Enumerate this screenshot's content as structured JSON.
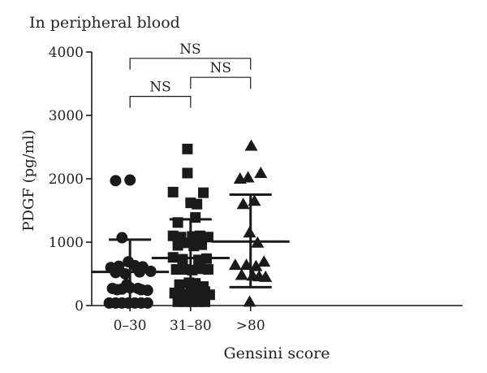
{
  "chart_data": {
    "type": "scatter",
    "subtitle": "In peripheral blood",
    "xlabel": "Gensini score",
    "ylabel": "PDGF (pg/ml)",
    "ylim": [
      0,
      4000
    ],
    "yticks": [
      "0",
      "1000",
      "2000",
      "3000",
      "4000"
    ],
    "grid": false,
    "categories": [
      "0–30",
      "31–80",
      ">80"
    ],
    "groups": [
      {
        "category": "0–30",
        "marker": "circle",
        "mean": 530,
        "sd_upper": 1040,
        "sd_lower": 40,
        "points": [
          {
            "x": 0.75,
            "y": 1970
          },
          {
            "x": 1.2,
            "y": 1980
          },
          {
            "x": 0.95,
            "y": 1070
          },
          {
            "x": 0.6,
            "y": 600
          },
          {
            "x": 0.85,
            "y": 620
          },
          {
            "x": 1.35,
            "y": 630
          },
          {
            "x": 1.6,
            "y": 610
          },
          {
            "x": 1.15,
            "y": 690
          },
          {
            "x": 0.75,
            "y": 520
          },
          {
            "x": 1.05,
            "y": 500
          },
          {
            "x": 1.5,
            "y": 530
          },
          {
            "x": 1.85,
            "y": 540
          },
          {
            "x": 0.65,
            "y": 270
          },
          {
            "x": 0.95,
            "y": 260
          },
          {
            "x": 1.2,
            "y": 280
          },
          {
            "x": 1.45,
            "y": 270
          },
          {
            "x": 1.75,
            "y": 240
          },
          {
            "x": 0.8,
            "y": 250
          },
          {
            "x": 1.1,
            "y": 330
          },
          {
            "x": 1.55,
            "y": 250
          },
          {
            "x": 0.55,
            "y": 40
          },
          {
            "x": 0.75,
            "y": 40
          },
          {
            "x": 0.95,
            "y": 40
          },
          {
            "x": 1.15,
            "y": 40
          },
          {
            "x": 1.35,
            "y": 40
          },
          {
            "x": 1.55,
            "y": 40
          },
          {
            "x": 1.75,
            "y": 40
          }
        ]
      },
      {
        "category": "31–80",
        "marker": "square",
        "mean": 750,
        "sd_upper": 1360,
        "sd_lower": 130,
        "points": [
          {
            "x": 3.0,
            "y": 2470
          },
          {
            "x": 3.0,
            "y": 2090
          },
          {
            "x": 2.55,
            "y": 1790
          },
          {
            "x": 3.5,
            "y": 1780
          },
          {
            "x": 3.1,
            "y": 1620
          },
          {
            "x": 3.3,
            "y": 1600
          },
          {
            "x": 2.7,
            "y": 1310
          },
          {
            "x": 3.25,
            "y": 1390
          },
          {
            "x": 2.55,
            "y": 1100
          },
          {
            "x": 2.8,
            "y": 1080
          },
          {
            "x": 3.15,
            "y": 1090
          },
          {
            "x": 3.4,
            "y": 1100
          },
          {
            "x": 3.65,
            "y": 1080
          },
          {
            "x": 2.7,
            "y": 950
          },
          {
            "x": 3.0,
            "y": 990
          },
          {
            "x": 3.2,
            "y": 940
          },
          {
            "x": 3.45,
            "y": 960
          },
          {
            "x": 3.3,
            "y": 1010
          },
          {
            "x": 2.55,
            "y": 760
          },
          {
            "x": 2.85,
            "y": 730
          },
          {
            "x": 3.35,
            "y": 720
          },
          {
            "x": 3.6,
            "y": 740
          },
          {
            "x": 2.65,
            "y": 570
          },
          {
            "x": 2.9,
            "y": 570
          },
          {
            "x": 3.15,
            "y": 560
          },
          {
            "x": 3.4,
            "y": 580
          },
          {
            "x": 3.65,
            "y": 570
          },
          {
            "x": 2.75,
            "y": 330
          },
          {
            "x": 3.05,
            "y": 360
          },
          {
            "x": 3.25,
            "y": 350
          },
          {
            "x": 3.5,
            "y": 300
          },
          {
            "x": 2.6,
            "y": 200
          },
          {
            "x": 2.85,
            "y": 180
          },
          {
            "x": 3.1,
            "y": 210
          },
          {
            "x": 3.35,
            "y": 190
          },
          {
            "x": 3.55,
            "y": 220
          },
          {
            "x": 3.7,
            "y": 170
          },
          {
            "x": 2.7,
            "y": 60
          },
          {
            "x": 2.95,
            "y": 60
          },
          {
            "x": 3.15,
            "y": 60
          },
          {
            "x": 3.35,
            "y": 60
          },
          {
            "x": 3.55,
            "y": 60
          }
        ]
      },
      {
        "category": ">80",
        "marker": "triangle",
        "mean": 1010,
        "sd_upper": 1750,
        "sd_lower": 290,
        "points": [
          {
            "x": 5.0,
            "y": 2520
          },
          {
            "x": 4.65,
            "y": 2000
          },
          {
            "x": 4.9,
            "y": 2020
          },
          {
            "x": 5.3,
            "y": 2090
          },
          {
            "x": 4.75,
            "y": 1600
          },
          {
            "x": 5.1,
            "y": 1650
          },
          {
            "x": 4.95,
            "y": 1150
          },
          {
            "x": 5.2,
            "y": 990
          },
          {
            "x": 4.5,
            "y": 640
          },
          {
            "x": 4.85,
            "y": 640
          },
          {
            "x": 5.15,
            "y": 620
          },
          {
            "x": 5.4,
            "y": 690
          },
          {
            "x": 4.7,
            "y": 480
          },
          {
            "x": 5.05,
            "y": 470
          },
          {
            "x": 5.25,
            "y": 460
          },
          {
            "x": 5.45,
            "y": 450
          },
          {
            "x": 4.95,
            "y": 60
          }
        ]
      }
    ],
    "comparisons": [
      {
        "from": "0–30",
        "to": "31–80",
        "label": "NS",
        "level": 3300
      },
      {
        "from": "31–80",
        "to": ">80",
        "label": "NS",
        "level": 3600
      },
      {
        "from": "0–30",
        "to": ">80",
        "label": "NS",
        "level": 3900
      }
    ]
  }
}
